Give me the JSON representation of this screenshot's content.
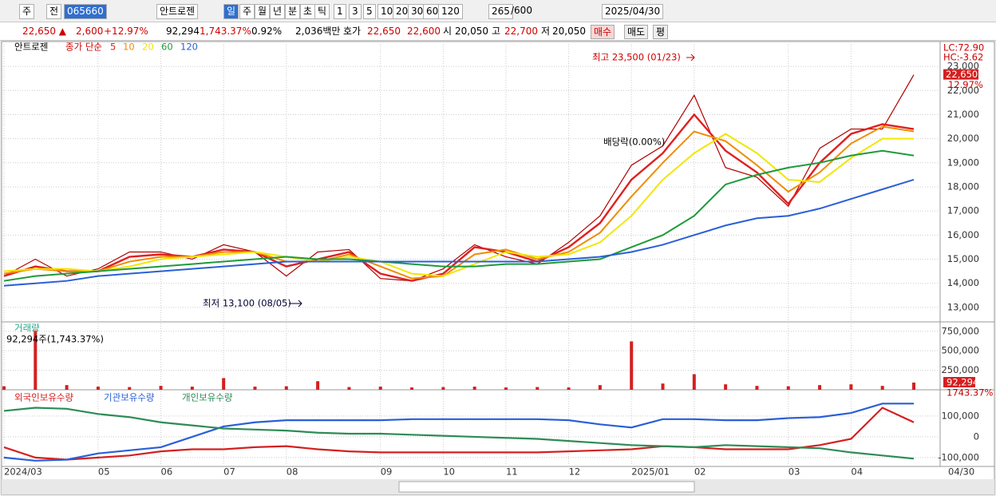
{
  "toolbar": {
    "items": [
      "주",
      "전",
      "065660",
      "안트로젠",
      "일",
      "주",
      "월",
      "년",
      "분",
      "초",
      "틱",
      "1",
      "3",
      "5",
      "10",
      "20",
      "30",
      "60",
      "120",
      "265",
      "/600",
      "2025/04/30"
    ]
  },
  "quote_bar": {
    "items": [
      "22,650 ▲",
      "2,600",
      "+12.97%",
      "92,294",
      "1,743.37%",
      "0.92%",
      "2,036백만",
      "호가",
      "22,650",
      "22,600",
      "시",
      "20,050",
      "고",
      "22,700",
      "저",
      "20,050",
      "매수",
      "매도",
      "평"
    ]
  },
  "chart_data": [
    {
      "type": "line",
      "title": "안트로젠",
      "legend_prefix": "종가 단순",
      "close_values": [
        14300,
        15000,
        14300,
        14600,
        15300,
        15300,
        15000,
        15600,
        15300,
        14300,
        15300,
        15400,
        14200,
        14100,
        14600,
        15600,
        15100,
        14800,
        15700,
        16800,
        18900,
        19700,
        21800,
        18800,
        18400,
        17200,
        19600,
        20400,
        20400,
        22650
      ],
      "close_color": "#b00000",
      "series": [
        {
          "name": "5",
          "color": "#e02020",
          "values": [
            14300,
            14700,
            14500,
            14500,
            15100,
            15200,
            15100,
            15400,
            15300,
            14700,
            15000,
            15300,
            14400,
            14100,
            14400,
            15500,
            15300,
            14900,
            15500,
            16500,
            18300,
            19400,
            21000,
            19500,
            18600,
            17300,
            19000,
            20200,
            20600,
            20400
          ]
        },
        {
          "name": "10",
          "color": "#f08c00",
          "values": [
            14400,
            14600,
            14500,
            14500,
            14900,
            15100,
            15100,
            15300,
            15300,
            14900,
            14900,
            15200,
            14700,
            14200,
            14300,
            15200,
            15400,
            15000,
            15300,
            16100,
            17600,
            19000,
            20300,
            19900,
            18900,
            17800,
            18600,
            19800,
            20500,
            20300
          ]
        },
        {
          "name": "20",
          "color": "#f2e600",
          "values": [
            14500,
            14600,
            14600,
            14500,
            14700,
            15000,
            15100,
            15200,
            15300,
            15100,
            14900,
            15100,
            14900,
            14400,
            14300,
            14800,
            15300,
            15100,
            15200,
            15700,
            16800,
            18300,
            19400,
            20200,
            19400,
            18300,
            18200,
            19200,
            20000,
            20000
          ]
        },
        {
          "name": "60",
          "color": "#1e9a3a",
          "values": [
            14100,
            14300,
            14400,
            14500,
            14600,
            14700,
            14800,
            14900,
            15000,
            15100,
            15000,
            15000,
            14900,
            14800,
            14700,
            14700,
            14800,
            14800,
            14900,
            15000,
            15500,
            16000,
            16800,
            18100,
            18500,
            18800,
            19000,
            19300,
            19500,
            19300
          ]
        },
        {
          "name": "120",
          "color": "#2a5fd8",
          "values": [
            13900,
            14000,
            14100,
            14300,
            14400,
            14500,
            14600,
            14700,
            14800,
            14900,
            14900,
            14900,
            14900,
            14900,
            14900,
            14900,
            14900,
            14900,
            15000,
            15100,
            15300,
            15600,
            16000,
            16400,
            16700,
            16800,
            17100,
            17500,
            17900,
            18300
          ]
        }
      ],
      "ylim": [
        12400,
        24030
      ],
      "yticks": [
        {
          "value": 13000,
          "label": "13,000"
        },
        {
          "value": 14000,
          "label": "14,000"
        },
        {
          "value": 15000,
          "label": "15,000"
        },
        {
          "value": 16000,
          "label": "16,000"
        },
        {
          "value": 17000,
          "label": "17,000"
        },
        {
          "value": 18000,
          "label": "18,000"
        },
        {
          "value": 19000,
          "label": "19,000"
        },
        {
          "value": 20000,
          "label": "20,000"
        },
        {
          "value": 21000,
          "label": "21,000"
        },
        {
          "value": 22000,
          "label": "22,000"
        },
        {
          "value": 23000,
          "label": "23,000"
        }
      ],
      "annotations": [
        "최고 23,500 (01/23)",
        "최저 13,100 (08/05)",
        "배당락(0.00%)"
      ],
      "axis_notes": [
        "LC:72.90",
        "HC:-3.62"
      ],
      "price_tag": "22,650",
      "change_tag": "12.97%",
      "grid": true
    },
    {
      "type": "bar",
      "title": "거래량",
      "subtitle": "92,294주(1,743.37%)",
      "color": "#d42020",
      "values": [
        45000,
        760000,
        60000,
        40000,
        35000,
        50000,
        40000,
        150000,
        40000,
        45000,
        110000,
        35000,
        40000,
        30000,
        35000,
        40000,
        30000,
        35000,
        30000,
        60000,
        620000,
        80000,
        200000,
        70000,
        50000,
        45000,
        60000,
        70000,
        50000,
        92294
      ],
      "ylim": [
        0,
        850000
      ],
      "yticks": [
        {
          "value": 250000,
          "label": "250,000"
        },
        {
          "value": 500000,
          "label": "500,000"
        },
        {
          "value": 750000,
          "label": "750,000"
        }
      ],
      "volume_tag": "92,294",
      "ratio_tag": "1743.37%",
      "grid": true
    },
    {
      "type": "line",
      "categories": [
        "2024/03",
        null,
        null,
        "05",
        null,
        "06",
        null,
        "07",
        null,
        "08",
        null,
        null,
        "09",
        null,
        "10",
        null,
        "11",
        null,
        "12",
        null,
        "2025/01",
        null,
        "02",
        null,
        null,
        "03",
        null,
        "04",
        null,
        null
      ],
      "end_label": "04/30",
      "series": [
        {
          "name": "외국인보유수량",
          "color": "#d42020",
          "values": [
            -50000,
            -100000,
            -110000,
            -100000,
            -90000,
            -70000,
            -60000,
            -60000,
            -50000,
            -45000,
            -60000,
            -70000,
            -75000,
            -75000,
            -75000,
            -75000,
            -75000,
            -75000,
            -70000,
            -65000,
            -60000,
            -45000,
            -50000,
            -60000,
            -60000,
            -60000,
            -40000,
            -10000,
            140000,
            70000
          ]
        },
        {
          "name": "기관보유수량",
          "color": "#2a5fd8",
          "values": [
            -100000,
            -115000,
            -110000,
            -80000,
            -65000,
            -50000,
            0,
            50000,
            70000,
            80000,
            80000,
            80000,
            80000,
            85000,
            85000,
            85000,
            85000,
            85000,
            80000,
            60000,
            45000,
            85000,
            85000,
            80000,
            80000,
            90000,
            95000,
            115000,
            160000,
            160000
          ]
        },
        {
          "name": "개인보유수량",
          "color": "#2e8b57",
          "values": [
            125000,
            140000,
            135000,
            110000,
            95000,
            70000,
            55000,
            40000,
            35000,
            30000,
            20000,
            15000,
            15000,
            10000,
            5000,
            0,
            -5000,
            -10000,
            -20000,
            -30000,
            -40000,
            -45000,
            -50000,
            -40000,
            -45000,
            -50000,
            -55000,
            -75000,
            -90000,
            -105000
          ]
        }
      ],
      "ylim": [
        -135000,
        219000
      ],
      "yticks": [
        {
          "value": 100000,
          "label": "100,000"
        },
        0,
        {
          "value": -100000,
          "label": "-100,000"
        }
      ],
      "grid": true
    }
  ]
}
